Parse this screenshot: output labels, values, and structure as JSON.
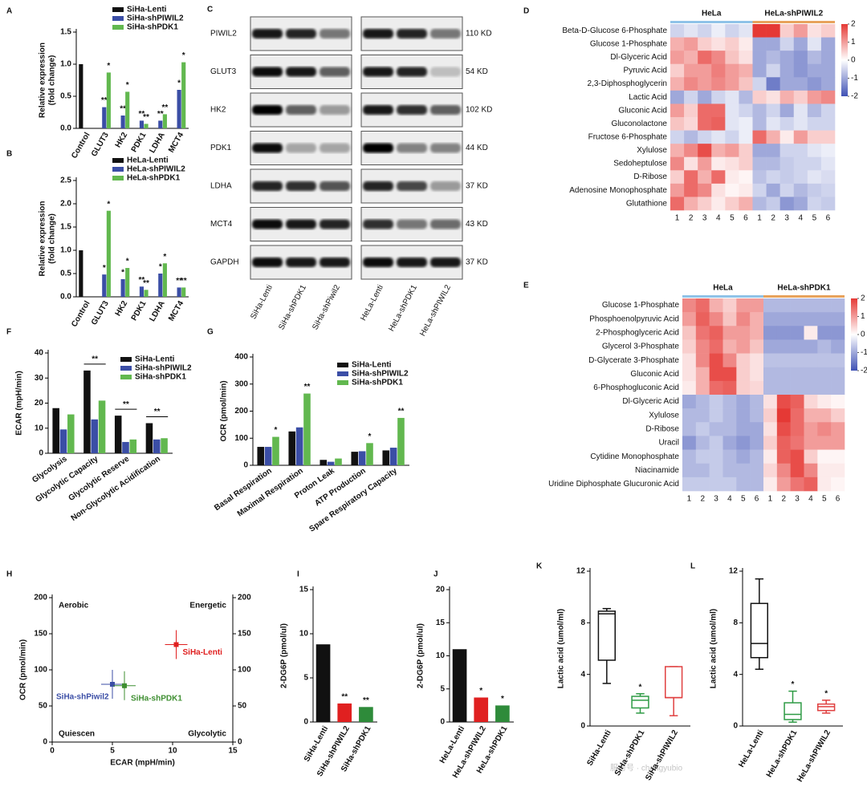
{
  "chart_data": [
    {
      "panel": "A",
      "type": "bar",
      "ylabel": [
        "Relative expression",
        "(fold change)"
      ],
      "categories": [
        "Control",
        "GLUT3",
        "HK2",
        "PDK1",
        "LDHA",
        "MCT4"
      ],
      "series": [
        {
          "name": "SiHa-Lenti",
          "color": "#111111",
          "values": [
            1,
            null,
            null,
            null,
            null,
            null
          ]
        },
        {
          "name": "SiHa-shPIWIL2",
          "color": "#3b4ea6",
          "values": [
            null,
            0.33,
            0.2,
            0.12,
            0.12,
            0.6
          ],
          "labels": [
            null,
            "**",
            "**",
            "**",
            "**",
            "*"
          ]
        },
        {
          "name": "SiHa-shPDK1",
          "color": "#62b84f",
          "values": [
            null,
            0.87,
            0.57,
            0.07,
            0.22,
            1.03
          ],
          "labels": [
            null,
            "*",
            "*",
            "**",
            "**",
            "*"
          ]
        }
      ],
      "ylim": [
        0,
        1.5
      ],
      "yticks": [
        {
          "value": 0,
          "label": "0.0"
        },
        0.5,
        {
          "value": 1,
          "label": "1.0"
        },
        1.5
      ]
    },
    {
      "panel": "B",
      "type": "bar",
      "ylabel": [
        "Relative expression",
        "(fold change)"
      ],
      "categories": [
        "Control",
        "GLUT3",
        "HK2",
        "PDK1",
        "LDHA",
        "MCT4"
      ],
      "series": [
        {
          "name": "HeLa-Lenti",
          "color": "#111111",
          "values": [
            1,
            null,
            null,
            null,
            null,
            null
          ]
        },
        {
          "name": "HeLa-shPIWIL2",
          "color": "#3b4ea6",
          "values": [
            null,
            0.48,
            0.38,
            0.22,
            0.5,
            0.2
          ],
          "labels": [
            null,
            "*",
            "*",
            "**",
            "*",
            "**"
          ]
        },
        {
          "name": "HeLa-shPDK1",
          "color": "#62b84f",
          "values": [
            null,
            1.85,
            0.62,
            0.15,
            0.72,
            0.2
          ],
          "labels": [
            null,
            "*",
            "*",
            "**",
            "*",
            "**"
          ]
        }
      ],
      "ylim": [
        0,
        2.5
      ],
      "yticks": [
        {
          "value": 0,
          "label": "0.0"
        },
        0.5,
        {
          "value": 1,
          "label": "1.0"
        },
        1.5,
        {
          "value": 2,
          "label": "2.0"
        },
        2.5
      ]
    },
    {
      "panel": "D",
      "type": "heatmap",
      "groups": [
        "HeLa",
        "HeLa-shPIWIL2"
      ],
      "rows": [
        "Beta-D-Glucose 6-Phosphate",
        "Glucose 1-Phosphate",
        "Dl-Glyceric Acid",
        "Pyruvic Acid",
        "2,3-Diphosphoglycerin",
        "Lactic Acid",
        "Gluconic Acid",
        "Gluconolactone",
        "Fructose 6-Phosphate",
        "Xylulose",
        "Sedoheptulose",
        "D-Ribose",
        "Adenosine Monophosphate",
        "Glutathione"
      ],
      "columns": [
        1,
        2,
        3,
        4,
        5,
        6,
        1,
        2,
        3,
        4,
        5,
        6
      ],
      "values": [
        [
          -0.5,
          -0.3,
          -0.5,
          -0.2,
          -0.5,
          -0.3,
          2,
          2,
          0.5,
          1,
          0.3,
          0.5
        ],
        [
          0.8,
          1,
          0.5,
          0.3,
          0.5,
          0.2,
          -1,
          -1,
          -0.5,
          -1,
          -0.3,
          -1
        ],
        [
          1,
          0.8,
          1.5,
          1.2,
          0.6,
          0.3,
          -1,
          -0.8,
          -1,
          -1.2,
          -0.8,
          -1
        ],
        [
          0.5,
          1,
          1,
          1.3,
          1,
          0.8,
          -1,
          -0.5,
          -1,
          -1.2,
          -1,
          -1
        ],
        [
          0.8,
          1.2,
          1,
          1.2,
          1,
          0.6,
          -0.5,
          -1.5,
          -1,
          -1,
          -1.2,
          -1
        ],
        [
          -1,
          -0.5,
          -1,
          -0.5,
          -0.3,
          -0.8,
          0.5,
          0.3,
          0.8,
          0.5,
          1,
          1.2
        ],
        [
          1,
          0.5,
          1.5,
          1.5,
          -0.3,
          -0.5,
          -0.8,
          -0.5,
          -1,
          -0.3,
          -0.8,
          -0.5
        ],
        [
          0.6,
          0.4,
          1.5,
          1.6,
          -0.3,
          -0.2,
          -0.8,
          -0.3,
          -0.5,
          -0.3,
          -0.5,
          -0.5
        ],
        [
          -0.5,
          -0.8,
          -0.5,
          -0.3,
          -0.5,
          -0.2,
          1.5,
          0.8,
          0.2,
          1,
          0.5,
          0.5
        ],
        [
          0.8,
          1.2,
          1.8,
          0.8,
          1,
          0.5,
          -1,
          -1,
          -0.5,
          -0.5,
          -0.3,
          -0.2
        ],
        [
          1.2,
          0.3,
          1,
          0.2,
          0.3,
          0.5,
          -0.8,
          -0.8,
          -0.6,
          -0.5,
          -0.5,
          -0.3
        ],
        [
          0.5,
          1.5,
          0.8,
          1.5,
          0.2,
          0.1,
          -0.7,
          -0.5,
          -0.6,
          -0.5,
          -0.3,
          -0.4
        ],
        [
          1,
          1.5,
          1.2,
          0.3,
          0.1,
          0.2,
          -0.5,
          -1,
          -0.5,
          -0.8,
          -0.6,
          -0.5
        ],
        [
          1.5,
          0.8,
          0.5,
          0.2,
          0.5,
          0.8,
          -0.8,
          -0.6,
          -1.2,
          -1,
          -0.5,
          -0.6
        ]
      ],
      "clim": [
        -2,
        2
      ],
      "cticks": [
        2,
        1,
        0,
        -1,
        -2
      ]
    },
    {
      "panel": "E",
      "type": "heatmap",
      "groups": [
        "HeLa",
        "HeLa-shPDK1"
      ],
      "rows": [
        "Glucose 1-Phosphate",
        "Phosphoenolpyruvic Acid",
        "2-Phosphoglyceric Acid",
        "Glycerol 3-Phosphate",
        "D-Glycerate 3-Phosphate",
        "Gluconic Acid",
        "6-Phosphogluconic Acid",
        "Dl-Glyceric Acid",
        "Xylulose",
        "D-Ribose",
        "Uracil",
        "Cytidine Monophosphate",
        "Niacinamide",
        "Uridine Diphosphate Glucuronic Acid"
      ],
      "columns": [
        1,
        2,
        3,
        4,
        5,
        6,
        1,
        2,
        3,
        4,
        5,
        6
      ],
      "values": [
        [
          1.2,
          1.5,
          0.8,
          0.5,
          1,
          1,
          -0.8,
          -0.8,
          -0.8,
          -0.8,
          -0.8,
          -0.8
        ],
        [
          1,
          1.6,
          1.2,
          0.6,
          1.2,
          0.8,
          -1,
          -1,
          -1,
          -1,
          -1,
          -1
        ],
        [
          0.6,
          1.4,
          1.6,
          1,
          1,
          0.8,
          -1.2,
          -1.2,
          -1.2,
          0.2,
          -1.2,
          -1.2
        ],
        [
          0.5,
          1.2,
          1.5,
          0.8,
          1,
          0.6,
          -1,
          -1,
          -1,
          -1,
          -0.8,
          -1
        ],
        [
          0.3,
          1.2,
          1.8,
          1.2,
          0.5,
          0.3,
          -0.7,
          -0.7,
          -0.7,
          -0.7,
          -0.7,
          -0.7
        ],
        [
          0.3,
          0.8,
          1.8,
          1.8,
          0.5,
          0.3,
          -0.8,
          -0.8,
          -0.8,
          -0.8,
          -0.8,
          -0.8
        ],
        [
          0.2,
          0.8,
          1.5,
          1.6,
          0.5,
          0.4,
          -0.8,
          -0.8,
          -0.8,
          -0.8,
          -0.8,
          -0.8
        ],
        [
          -1,
          -0.8,
          -0.6,
          -0.8,
          -1,
          -0.8,
          0.3,
          1.8,
          1.6,
          0.4,
          0.2,
          0.1
        ],
        [
          -0.8,
          -0.8,
          -0.6,
          -0.8,
          -1,
          -0.8,
          0.5,
          2,
          1.5,
          0.8,
          0.8,
          0.5
        ],
        [
          -0.8,
          -0.6,
          -0.8,
          -0.8,
          -1,
          -1,
          0.3,
          1.8,
          1.5,
          1,
          1.2,
          1
        ],
        [
          -1.2,
          -0.8,
          -0.6,
          -1,
          -1.2,
          -1,
          0.5,
          1.6,
          1.4,
          1,
          1,
          1
        ],
        [
          -0.8,
          -0.6,
          -0.6,
          -0.8,
          -1,
          -0.8,
          0.2,
          1.6,
          1.8,
          0.5,
          0.1,
          0.1
        ],
        [
          -0.8,
          -0.8,
          -0.6,
          -0.8,
          -0.8,
          -0.8,
          0.4,
          1.2,
          1.8,
          1.2,
          0.2,
          0.2
        ],
        [
          -0.6,
          -0.6,
          -0.6,
          -0.6,
          -0.8,
          -0.8,
          0.2,
          1,
          1.4,
          1.6,
          0.2,
          0.1
        ]
      ],
      "clim": [
        -2,
        2
      ],
      "cticks": [
        2,
        1,
        0,
        -1,
        -2
      ]
    },
    {
      "panel": "F",
      "type": "bar",
      "ylabel": [
        "ECAR (mpH/min)"
      ],
      "categories": [
        "Glycolysis",
        "Glycolytic Capacity",
        "Glycolytic Reserve",
        "Non-Glycolytic Acidification"
      ],
      "series": [
        {
          "name": "SiHa-Lenti",
          "color": "#111111",
          "values": [
            18,
            33,
            15,
            12
          ]
        },
        {
          "name": "SiHa-shPIWIL2",
          "color": "#3b4ea6",
          "values": [
            9.5,
            13.5,
            4.5,
            5.5
          ]
        },
        {
          "name": "SiHa-shPDK1",
          "color": "#62b84f",
          "values": [
            15.5,
            21,
            5.5,
            6
          ]
        }
      ],
      "annotations": [
        {
          "text": "**",
          "category": "Glycolytic Capacity"
        },
        {
          "text": "**",
          "category": "Glycolytic Reserve"
        },
        {
          "text": "**",
          "category": "Non-Glycolytic Acidification"
        }
      ],
      "ylim": [
        0,
        40
      ],
      "yticks": [
        0,
        10,
        20,
        30,
        40
      ]
    },
    {
      "panel": "G",
      "type": "bar",
      "ylabel": [
        "OCR (pmol/min)"
      ],
      "categories": [
        "Basal Respiration",
        "Maximal Respiration",
        "Proton Leak",
        "ATP Production",
        "Spare Respiratory Capacity"
      ],
      "series": [
        {
          "name": "SiHa-Lenti",
          "color": "#111111",
          "values": [
            68,
            125,
            20,
            50,
            55
          ]
        },
        {
          "name": "SiHa-shPIWIL2",
          "color": "#3b4ea6",
          "values": [
            68,
            140,
            13,
            52,
            65
          ]
        },
        {
          "name": "SiHa-shPDK1",
          "color": "#62b84f",
          "values": [
            105,
            265,
            25,
            82,
            175
          ],
          "labels": [
            "*",
            "**",
            null,
            "*",
            "**"
          ]
        }
      ],
      "ylim": [
        0,
        400
      ],
      "yticks": [
        0,
        100,
        200,
        300,
        400
      ]
    },
    {
      "panel": "H",
      "type": "scatter",
      "ylabel": [
        "OCR (pmol/min)"
      ],
      "xlabel": "ECAR (mpH/min)",
      "quadrants": [
        "Aerobic",
        "Energetic",
        "Quiescen",
        "Glycolytic"
      ],
      "points": [
        {
          "name": "SiHa-Lenti",
          "color": "#e02020",
          "x": 10.3,
          "y": 135
        },
        {
          "name": "SiHa-shPiwil2",
          "color": "#3b4ea6",
          "x": 5,
          "y": 80
        },
        {
          "name": "SiHa-shPDK1",
          "color": "#3f8f32",
          "x": 6,
          "y": 78
        }
      ],
      "xlim": [
        0,
        15
      ],
      "xticks": [
        0,
        5,
        10,
        15
      ],
      "ylim": [
        0,
        200
      ],
      "yticks": [
        0,
        50,
        100,
        150,
        200
      ],
      "y2lim": [
        0,
        200
      ],
      "y2ticks": [
        0,
        50,
        100,
        150,
        200
      ]
    },
    {
      "panel": "I",
      "type": "bar",
      "ylabel": [
        "2-DG6P (pmol/ul)"
      ],
      "categories": [
        "SiHa-Lenti",
        "SiHa-shPIWIL2",
        "SiHa-shPDK1"
      ],
      "values": [
        8.8,
        2.1,
        1.7
      ],
      "colors": [
        "#111111",
        "#e02020",
        "#2e8b3a"
      ],
      "labels": [
        null,
        "**",
        "**"
      ],
      "ylim": [
        0,
        15
      ],
      "yticks": [
        0,
        5,
        10,
        15
      ]
    },
    {
      "panel": "J",
      "type": "bar",
      "ylabel": [
        "2-DG6P (pmol/ul)"
      ],
      "categories": [
        "HeLa-Lenti",
        "HeLa-shPIWIL2",
        "HeLa-shPDK1"
      ],
      "values": [
        11,
        3.7,
        2.5
      ],
      "colors": [
        "#111111",
        "#e02020",
        "#2e8b3a"
      ],
      "labels": [
        null,
        "*",
        "*"
      ],
      "ylim": [
        0,
        20
      ],
      "yticks": [
        0,
        5,
        10,
        15,
        20
      ]
    },
    {
      "panel": "K",
      "type": "box",
      "ylabel": [
        "Lactic acid (umol/ml)"
      ],
      "categories": [
        "SiHa-Lenti",
        "SiHa-shPDK1",
        "SiHa-shPIWIL2"
      ],
      "boxes": [
        {
          "min": 3.3,
          "q1": 5.1,
          "median": 8.7,
          "q3": 8.9,
          "max": 9.1
        },
        {
          "min": 1,
          "q1": 1.4,
          "median": 2,
          "q3": 2.3,
          "max": 2.5
        },
        {
          "min": 0.8,
          "q1": 2.2,
          "median": 2.2,
          "q3": 4.6,
          "max": 4.6
        }
      ],
      "colors": [
        "#111111",
        "#2e9b45",
        "#e04040"
      ],
      "labels": [
        null,
        "*",
        null
      ],
      "ylim": [
        0,
        12
      ],
      "yticks": [
        0,
        4,
        8,
        12
      ]
    },
    {
      "panel": "L",
      "type": "box",
      "ylabel": [
        "Lactic acid (umol/ml)"
      ],
      "categories": [
        "HeLa-Lenti",
        "HeLa-shPDK1",
        "HeLa-shPIWIL2"
      ],
      "boxes": [
        {
          "min": 4.4,
          "q1": 5.3,
          "median": 6.4,
          "q3": 9.5,
          "max": 11.4
        },
        {
          "min": 0.3,
          "q1": 0.5,
          "median": 0.9,
          "q3": 1.8,
          "max": 2.7
        },
        {
          "min": 1,
          "q1": 1.2,
          "median": 1.5,
          "q3": 1.7,
          "max": 2
        }
      ],
      "colors": [
        "#111111",
        "#2e9b45",
        "#e04040"
      ],
      "labels": [
        null,
        "*",
        "*"
      ],
      "ylim": [
        0,
        12
      ],
      "yticks": [
        0,
        4,
        8,
        12
      ]
    }
  ],
  "blot": {
    "panel": "C",
    "proteins": [
      "PIWIL2",
      "GLUT3",
      "HK2",
      "PDK1",
      "LDHA",
      "MCT4",
      "GAPDH"
    ],
    "sizes": [
      "110 KD",
      "54 KD",
      "102 KD",
      "44 KD",
      "37 KD",
      "43 KD",
      "37 KD"
    ],
    "lanes": [
      "SiHa-Lenti",
      "SiHa-shPDK1",
      "SiHa-shPiwil2",
      "HeLa-Lenti",
      "HeLa-shPDK1",
      "HeLa-shPIWIL2"
    ]
  },
  "watermark": "服务号 · changyubio"
}
